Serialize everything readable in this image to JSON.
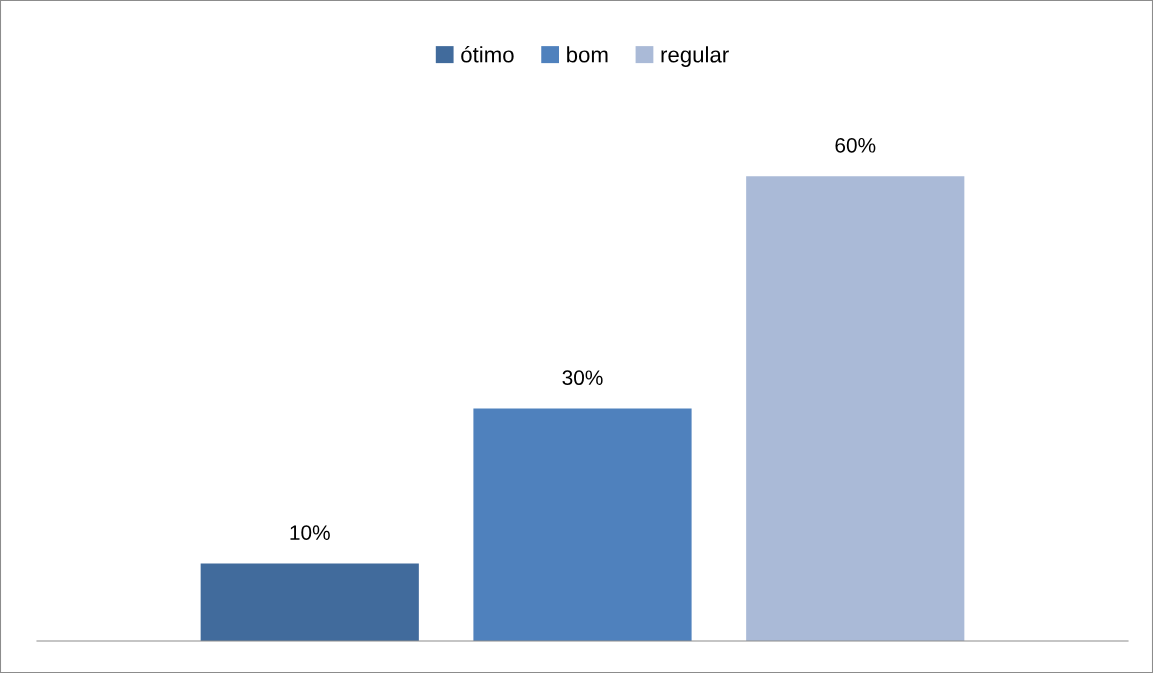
{
  "chart_data": {
    "type": "bar",
    "categories": [
      null
    ],
    "series": [
      {
        "name": "ótimo",
        "color": "#416b9c",
        "values": [
          10
        ],
        "value_labels": [
          "10%"
        ]
      },
      {
        "name": "bom",
        "color": "#4f81bd",
        "values": [
          30
        ],
        "value_labels": [
          "30%"
        ]
      },
      {
        "name": "regular",
        "color": "#aabad7",
        "values": [
          60
        ],
        "value_labels": [
          "60%"
        ]
      }
    ],
    "tick_labels": false,
    "grid": false,
    "legend": "top"
  }
}
